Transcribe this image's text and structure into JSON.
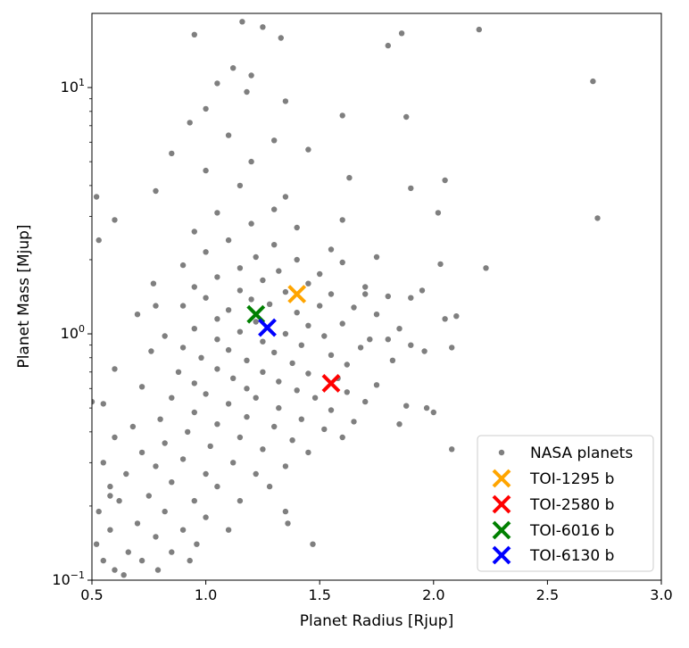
{
  "chart_data": {
    "type": "scatter",
    "xlabel": "Planet Radius [Rjup]",
    "ylabel": "Planet Mass [Mjup]",
    "xlim": [
      0.5,
      3.0
    ],
    "ylim": [
      0.1,
      20
    ],
    "yscale": "log",
    "grid": false,
    "legend_placement": "lower-right",
    "x_ticks": [
      "0.5",
      "1.0",
      "1.5",
      "2.0",
      "2.5",
      "3.0"
    ],
    "y_ticks": [
      {
        "value": 0.1,
        "base": "10",
        "exp": "−1"
      },
      {
        "value": 1,
        "base": "10",
        "exp": "0"
      },
      {
        "value": 10,
        "base": "10",
        "exp": "1"
      }
    ],
    "series": [
      {
        "name": "NASA planets",
        "marker": "circle",
        "color": "#000000",
        "alpha": 0.5,
        "points": [
          [
            1.16,
            18.5
          ],
          [
            1.25,
            17.6
          ],
          [
            0.95,
            16.4
          ],
          [
            1.33,
            15.9
          ],
          [
            1.86,
            16.6
          ],
          [
            2.2,
            17.2
          ],
          [
            1.8,
            14.8
          ],
          [
            1.12,
            12.0
          ],
          [
            1.2,
            11.2
          ],
          [
            1.05,
            10.4
          ],
          [
            1.18,
            9.6
          ],
          [
            2.7,
            10.6
          ],
          [
            1.35,
            8.8
          ],
          [
            1.0,
            8.2
          ],
          [
            1.6,
            7.7
          ],
          [
            1.88,
            7.6
          ],
          [
            0.93,
            7.2
          ],
          [
            1.1,
            6.4
          ],
          [
            1.3,
            6.1
          ],
          [
            1.45,
            5.6
          ],
          [
            0.85,
            5.4
          ],
          [
            1.2,
            5.0
          ],
          [
            1.0,
            4.6
          ],
          [
            1.63,
            4.3
          ],
          [
            2.05,
            4.2
          ],
          [
            1.15,
            4.0
          ],
          [
            0.78,
            3.8
          ],
          [
            1.35,
            3.6
          ],
          [
            1.9,
            3.9
          ],
          [
            0.52,
            3.6
          ],
          [
            1.3,
            3.2
          ],
          [
            1.05,
            3.1
          ],
          [
            2.02,
            3.1
          ],
          [
            0.6,
            2.9
          ],
          [
            2.72,
            2.95
          ],
          [
            1.2,
            2.8
          ],
          [
            1.4,
            2.7
          ],
          [
            0.95,
            2.6
          ],
          [
            1.1,
            2.4
          ],
          [
            1.3,
            2.3
          ],
          [
            1.55,
            2.2
          ],
          [
            1.75,
            2.05
          ],
          [
            0.53,
            2.4
          ],
          [
            1.0,
            2.15
          ],
          [
            1.22,
            2.05
          ],
          [
            1.4,
            2.0
          ],
          [
            1.6,
            1.95
          ],
          [
            2.03,
            1.92
          ],
          [
            2.23,
            1.85
          ],
          [
            0.9,
            1.9
          ],
          [
            1.15,
            1.85
          ],
          [
            1.32,
            1.8
          ],
          [
            1.5,
            1.75
          ],
          [
            1.05,
            1.7
          ],
          [
            1.25,
            1.65
          ],
          [
            1.45,
            1.6
          ],
          [
            1.7,
            1.55
          ],
          [
            0.77,
            1.6
          ],
          [
            0.95,
            1.55
          ],
          [
            1.15,
            1.5
          ],
          [
            1.35,
            1.48
          ],
          [
            1.55,
            1.45
          ],
          [
            1.8,
            1.42
          ],
          [
            1.95,
            1.5
          ],
          [
            1.9,
            1.4
          ],
          [
            1.0,
            1.4
          ],
          [
            1.2,
            1.38
          ],
          [
            1.28,
            1.32
          ],
          [
            1.5,
            1.3
          ],
          [
            1.65,
            1.28
          ],
          [
            0.9,
            1.3
          ],
          [
            1.1,
            1.25
          ],
          [
            1.4,
            1.22
          ],
          [
            1.75,
            1.2
          ],
          [
            2.05,
            1.15
          ],
          [
            2.1,
            1.18
          ],
          [
            0.7,
            1.2
          ],
          [
            1.05,
            1.15
          ],
          [
            1.22,
            1.12
          ],
          [
            1.45,
            1.08
          ],
          [
            1.6,
            1.1
          ],
          [
            1.85,
            1.05
          ],
          [
            0.95,
            1.05
          ],
          [
            1.15,
            1.02
          ],
          [
            1.35,
            1.0
          ],
          [
            1.52,
            0.98
          ],
          [
            1.72,
            0.95
          ],
          [
            0.82,
            0.98
          ],
          [
            1.05,
            0.95
          ],
          [
            1.25,
            0.93
          ],
          [
            1.42,
            0.9
          ],
          [
            1.68,
            0.88
          ],
          [
            1.9,
            0.9
          ],
          [
            2.08,
            0.88
          ],
          [
            1.96,
            0.85
          ],
          [
            0.9,
            0.88
          ],
          [
            1.1,
            0.86
          ],
          [
            1.3,
            0.84
          ],
          [
            1.55,
            0.82
          ],
          [
            0.76,
            0.85
          ],
          [
            0.98,
            0.8
          ],
          [
            1.18,
            0.78
          ],
          [
            1.38,
            0.76
          ],
          [
            1.62,
            0.75
          ],
          [
            1.82,
            0.78
          ],
          [
            1.05,
            0.72
          ],
          [
            1.25,
            0.7
          ],
          [
            1.45,
            0.69
          ],
          [
            0.88,
            0.7
          ],
          [
            0.6,
            0.72
          ],
          [
            1.12,
            0.66
          ],
          [
            1.32,
            0.64
          ],
          [
            1.58,
            0.66
          ],
          [
            1.75,
            0.62
          ],
          [
            0.95,
            0.63
          ],
          [
            1.18,
            0.6
          ],
          [
            1.4,
            0.59
          ],
          [
            1.62,
            0.58
          ],
          [
            0.72,
            0.61
          ],
          [
            1.0,
            0.57
          ],
          [
            1.22,
            0.55
          ],
          [
            1.48,
            0.55
          ],
          [
            1.7,
            0.53
          ],
          [
            1.97,
            0.5
          ],
          [
            2.0,
            0.48
          ],
          [
            0.85,
            0.55
          ],
          [
            1.1,
            0.52
          ],
          [
            1.32,
            0.5
          ],
          [
            1.55,
            0.49
          ],
          [
            1.88,
            0.51
          ],
          [
            0.55,
            0.52
          ],
          [
            0.95,
            0.48
          ],
          [
            1.18,
            0.46
          ],
          [
            1.42,
            0.45
          ],
          [
            1.65,
            0.44
          ],
          [
            0.8,
            0.45
          ],
          [
            1.05,
            0.43
          ],
          [
            1.3,
            0.42
          ],
          [
            1.52,
            0.41
          ],
          [
            1.85,
            0.43
          ],
          [
            0.68,
            0.42
          ],
          [
            0.92,
            0.4
          ],
          [
            1.15,
            0.38
          ],
          [
            1.38,
            0.37
          ],
          [
            1.6,
            0.38
          ],
          [
            0.6,
            0.38
          ],
          [
            0.82,
            0.36
          ],
          [
            1.02,
            0.35
          ],
          [
            1.25,
            0.34
          ],
          [
            1.45,
            0.33
          ],
          [
            2.08,
            0.34
          ],
          [
            0.72,
            0.33
          ],
          [
            0.9,
            0.31
          ],
          [
            1.12,
            0.3
          ],
          [
            1.35,
            0.29
          ],
          [
            0.55,
            0.3
          ],
          [
            0.78,
            0.29
          ],
          [
            1.0,
            0.27
          ],
          [
            1.22,
            0.27
          ],
          [
            0.65,
            0.27
          ],
          [
            0.85,
            0.25
          ],
          [
            1.05,
            0.24
          ],
          [
            1.28,
            0.24
          ],
          [
            0.58,
            0.24
          ],
          [
            0.75,
            0.22
          ],
          [
            0.95,
            0.21
          ],
          [
            1.15,
            0.21
          ],
          [
            0.62,
            0.21
          ],
          [
            0.82,
            0.19
          ],
          [
            1.0,
            0.18
          ],
          [
            1.35,
            0.19
          ],
          [
            1.36,
            0.17
          ],
          [
            0.53,
            0.19
          ],
          [
            0.7,
            0.17
          ],
          [
            0.9,
            0.16
          ],
          [
            1.1,
            0.16
          ],
          [
            0.58,
            0.16
          ],
          [
            0.78,
            0.15
          ],
          [
            0.96,
            0.14
          ],
          [
            1.47,
            0.14
          ],
          [
            0.52,
            0.14
          ],
          [
            0.66,
            0.13
          ],
          [
            0.85,
            0.13
          ],
          [
            0.55,
            0.12
          ],
          [
            0.72,
            0.12
          ],
          [
            0.93,
            0.12
          ],
          [
            0.6,
            0.11
          ],
          [
            0.79,
            0.11
          ],
          [
            0.64,
            0.105
          ],
          [
            0.5,
            0.53
          ],
          [
            0.58,
            0.22
          ],
          [
            1.8,
            0.95
          ],
          [
            1.7,
            1.45
          ],
          [
            0.78,
            1.3
          ],
          [
            1.6,
            2.9
          ]
        ]
      },
      {
        "name": "TOI-1295 b",
        "marker": "x",
        "color": "#ffa500",
        "points": [
          [
            1.4,
            1.45
          ]
        ]
      },
      {
        "name": "TOI-2580 b",
        "marker": "x",
        "color": "#ff0000",
        "points": [
          [
            1.55,
            0.63
          ]
        ]
      },
      {
        "name": "TOI-6016 b",
        "marker": "x",
        "color": "#008000",
        "points": [
          [
            1.22,
            1.2
          ]
        ]
      },
      {
        "name": "TOI-6130 b",
        "marker": "x",
        "color": "#0000ff",
        "points": [
          [
            1.27,
            1.06
          ]
        ]
      }
    ]
  }
}
